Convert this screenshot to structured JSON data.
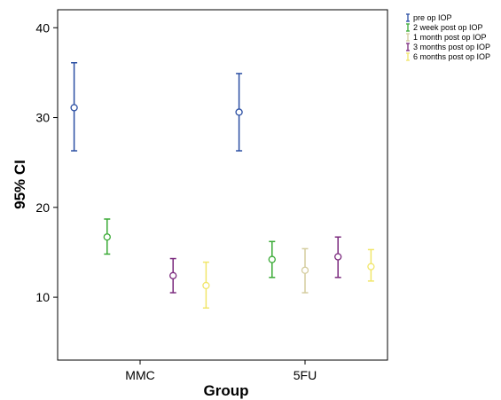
{
  "chart_data": {
    "type": "errorbar",
    "xlabel": "Group",
    "ylabel": "95% CI",
    "categories": [
      "MMC",
      "5FU"
    ],
    "ylim": [
      3,
      42
    ],
    "yticks": [
      10,
      20,
      30,
      40
    ],
    "y_tick_labels": [
      "10",
      "20",
      "30",
      "40"
    ],
    "legend_position": "top-right outside plot",
    "series": [
      {
        "name": "pre op IOP",
        "color": "#2b4fa3",
        "points": [
          {
            "category": "MMC",
            "mean": 31.1,
            "lower": 26.3,
            "upper": 36.1
          },
          {
            "category": "5FU",
            "mean": 30.6,
            "lower": 26.3,
            "upper": 34.9
          }
        ]
      },
      {
        "name": "2 week post op IOP",
        "color": "#3aaa35",
        "points": [
          {
            "category": "MMC",
            "mean": 16.7,
            "lower": 14.8,
            "upper": 18.7
          },
          {
            "category": "5FU",
            "mean": 14.2,
            "lower": 12.2,
            "upper": 16.2
          }
        ]
      },
      {
        "name": "1 month post op IOP",
        "color": "#d4cc9e",
        "points": [
          {
            "category": "5FU",
            "mean": 13.0,
            "lower": 10.5,
            "upper": 15.4
          }
        ]
      },
      {
        "name": "3 months post op IOP",
        "color": "#7b2a7e",
        "points": [
          {
            "category": "MMC",
            "mean": 12.4,
            "lower": 10.5,
            "upper": 14.3
          },
          {
            "category": "5FU",
            "mean": 14.5,
            "lower": 12.2,
            "upper": 16.7
          }
        ]
      },
      {
        "name": "6 months post op IOP",
        "color": "#f1e66a",
        "points": [
          {
            "category": "MMC",
            "mean": 11.3,
            "lower": 8.8,
            "upper": 13.9
          },
          {
            "category": "5FU",
            "mean": 13.4,
            "lower": 11.8,
            "upper": 15.3
          }
        ]
      }
    ]
  }
}
